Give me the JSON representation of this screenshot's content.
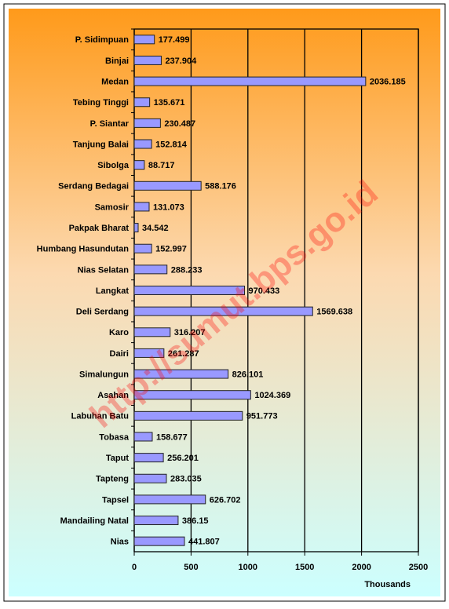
{
  "chart_data": {
    "type": "bar",
    "orientation": "horizontal",
    "categories": [
      "P. Sidimpuan",
      "Binjai",
      "Medan",
      "Tebing Tinggi",
      "P. Siantar",
      "Tanjung Balai",
      "Sibolga",
      "Serdang Bedagai",
      "Samosir",
      "Pakpak Bharat",
      "Humbang Hasundutan",
      "Nias Selatan",
      "Langkat",
      "Deli Serdang",
      "Karo",
      "Dairi",
      "Simalungun",
      "Asahan",
      "Labuhan Batu",
      "Tobasa",
      "Taput",
      "Tapteng",
      "Tapsel",
      "Mandailing Natal",
      "Nias"
    ],
    "values": [
      177.499,
      237.904,
      2036.185,
      135.671,
      230.487,
      152.814,
      88.717,
      588.176,
      131.073,
      34.542,
      152.997,
      288.233,
      970.433,
      1569.638,
      316.207,
      261.287,
      826.101,
      1024.369,
      951.773,
      158.677,
      256.201,
      283.035,
      626.702,
      386.15,
      441.807
    ],
    "color": "#9999ff",
    "xlim": [
      0,
      2500
    ],
    "xticks": [
      0,
      500,
      1000,
      1500,
      2000,
      2500
    ],
    "xlabel": "Thousands",
    "grid": true,
    "annotation": "http://sumut.bps.go.id"
  }
}
